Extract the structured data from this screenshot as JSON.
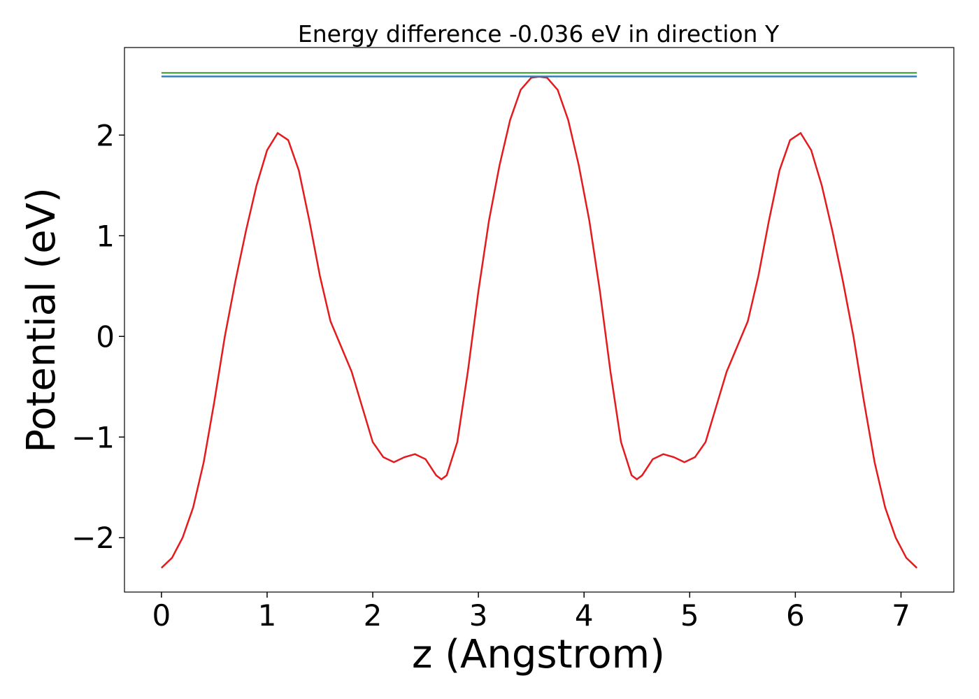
{
  "chart_data": {
    "type": "line",
    "title": "Energy difference -0.036 eV in direction Y",
    "xlabel": "z (Angstrom)",
    "ylabel": "Potential (eV)",
    "xlim": [
      -0.35,
      7.5
    ],
    "ylim": [
      -2.54,
      2.87
    ],
    "xticks": [
      0,
      1,
      2,
      3,
      4,
      5,
      6,
      7
    ],
    "yticks": [
      {
        "value": -2,
        "label": "−2"
      },
      {
        "value": -1,
        "label": "−1"
      },
      0,
      1,
      2
    ],
    "series": [
      {
        "color": "#e41a1c",
        "x": [
          0,
          0.1,
          0.2,
          0.3,
          0.4,
          0.5,
          0.6,
          0.7,
          0.8,
          0.9,
          1.0,
          1.1,
          1.2,
          1.3,
          1.4,
          1.5,
          1.6,
          1.7,
          1.8,
          1.9,
          2.0,
          2.1,
          2.2,
          2.3,
          2.4,
          2.5,
          2.6,
          2.65,
          2.7,
          2.8,
          2.9,
          3.0,
          3.1,
          3.2,
          3.3,
          3.4,
          3.5,
          3.575,
          3.65,
          3.75,
          3.85,
          3.95,
          4.05,
          4.15,
          4.25,
          4.35,
          4.45,
          4.5,
          4.55,
          4.65,
          4.75,
          4.85,
          4.95,
          5.05,
          5.15,
          5.25,
          5.35,
          5.45,
          5.55,
          5.65,
          5.75,
          5.85,
          5.95,
          6.05,
          6.15,
          6.25,
          6.35,
          6.45,
          6.55,
          6.65,
          6.75,
          6.85,
          6.95,
          7.05,
          7.15
        ],
        "values": [
          -2.3,
          -2.2,
          -2.0,
          -1.7,
          -1.25,
          -0.65,
          0.0,
          0.55,
          1.05,
          1.5,
          1.85,
          2.02,
          1.95,
          1.65,
          1.15,
          0.6,
          0.15,
          -0.1,
          -0.35,
          -0.7,
          -1.05,
          -1.2,
          -1.25,
          -1.2,
          -1.17,
          -1.22,
          -1.38,
          -1.42,
          -1.38,
          -1.05,
          -0.35,
          0.45,
          1.15,
          1.7,
          2.15,
          2.45,
          2.57,
          2.58,
          2.57,
          2.45,
          2.15,
          1.7,
          1.15,
          0.45,
          -0.35,
          -1.05,
          -1.38,
          -1.42,
          -1.38,
          -1.22,
          -1.17,
          -1.2,
          -1.25,
          -1.2,
          -1.05,
          -0.7,
          -0.35,
          -0.1,
          0.15,
          0.6,
          1.15,
          1.65,
          1.95,
          2.02,
          1.85,
          1.5,
          1.05,
          0.55,
          0.0,
          -0.65,
          -1.25,
          -1.7,
          -2.0,
          -2.2,
          -2.3
        ]
      },
      {
        "color": "#4daf4a",
        "x": [
          0,
          7.15
        ],
        "values": [
          2.618,
          2.618
        ]
      },
      {
        "color": "#377eb8",
        "x": [
          0,
          7.15
        ],
        "values": [
          2.583,
          2.583
        ]
      }
    ]
  }
}
